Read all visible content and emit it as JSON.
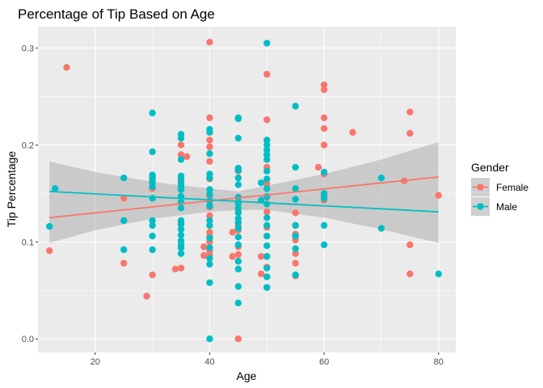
{
  "chart_data": {
    "type": "scatter",
    "title": "Percentage of Tip Based on Age",
    "xlabel": "Age",
    "ylabel": "Tip Percentage",
    "xlim": [
      10,
      83
    ],
    "ylim": [
      -0.014,
      0.322
    ],
    "x_ticks": [
      20,
      40,
      60,
      80
    ],
    "x_tick_labels": [
      "20",
      "40",
      "60",
      "80"
    ],
    "y_ticks": [
      0.0,
      0.1,
      0.2,
      0.3
    ],
    "y_tick_labels": [
      "0.0",
      "0.1",
      "0.2",
      "0.3"
    ],
    "grid": true,
    "legend": {
      "title": "Gender",
      "position": "right"
    },
    "series": [
      {
        "name": "Female",
        "color": "#F8766D",
        "x": [
          12,
          15,
          25,
          25,
          29,
          30,
          30,
          30,
          34,
          35,
          35,
          35,
          35,
          35,
          35,
          36,
          39,
          39,
          40,
          40,
          40,
          40,
          40,
          40,
          40,
          40,
          40,
          40,
          40,
          40,
          40,
          40,
          44,
          44,
          45,
          45,
          45,
          45,
          45,
          45,
          45,
          45,
          49,
          49,
          50,
          50,
          50,
          50,
          50,
          50,
          50,
          50,
          50,
          50,
          50,
          55,
          55,
          55,
          55,
          55,
          55,
          55,
          59,
          60,
          60,
          60,
          60,
          60,
          60,
          60,
          60,
          65,
          74,
          75,
          75,
          75,
          75,
          80
        ],
        "y": [
          0.091,
          0.28,
          0.145,
          0.078,
          0.044,
          0.163,
          0.155,
          0.066,
          0.072,
          0.2,
          0.19,
          0.163,
          0.147,
          0.12,
          0.073,
          0.188,
          0.095,
          0.086,
          0.306,
          0.228,
          0.205,
          0.198,
          0.183,
          0.165,
          0.147,
          0.136,
          0.127,
          0.11,
          0.106,
          0.1,
          0.091,
          0.087,
          0.11,
          0.085,
          0.173,
          0.142,
          0.132,
          0.117,
          0.112,
          0.095,
          0.087,
          0.0,
          0.085,
          0.067,
          0.273,
          0.226,
          0.205,
          0.177,
          0.16,
          0.146,
          0.131,
          0.115,
          0.106,
          0.085,
          0.074,
          0.13,
          0.117,
          0.108,
          0.102,
          0.088,
          0.078,
          0.065,
          0.177,
          0.262,
          0.257,
          0.228,
          0.217,
          0.2,
          0.17,
          0.147,
          0.143,
          0.213,
          0.163,
          0.234,
          0.212,
          0.097,
          0.067,
          0.148
        ]
      },
      {
        "name": "Male",
        "color": "#00BFC4",
        "x": [
          12,
          13,
          25,
          25,
          25,
          30,
          30,
          30,
          30,
          30,
          30,
          30,
          30,
          30,
          30,
          30,
          30,
          35,
          35,
          35,
          35,
          35,
          35,
          35,
          35,
          35,
          35,
          35,
          35,
          35,
          35,
          35,
          35,
          35,
          35,
          35,
          40,
          40,
          40,
          40,
          40,
          40,
          40,
          40,
          40,
          40,
          40,
          40,
          40,
          40,
          40,
          40,
          40,
          45,
          45,
          45,
          45,
          45,
          45,
          45,
          45,
          45,
          45,
          45,
          45,
          45,
          45,
          45,
          45,
          45,
          45,
          45,
          45,
          49,
          49,
          50,
          50,
          50,
          50,
          50,
          50,
          50,
          50,
          50,
          50,
          50,
          50,
          50,
          50,
          50,
          50,
          50,
          50,
          50,
          50,
          55,
          55,
          55,
          55,
          55,
          55,
          55,
          55,
          60,
          60,
          60,
          60,
          60,
          70,
          70,
          80
        ],
        "y": [
          0.116,
          0.155,
          0.166,
          0.122,
          0.092,
          0.233,
          0.193,
          0.169,
          0.167,
          0.165,
          0.161,
          0.157,
          0.145,
          0.122,
          0.117,
          0.106,
          0.092,
          0.211,
          0.207,
          0.185,
          0.168,
          0.165,
          0.16,
          0.157,
          0.154,
          0.147,
          0.141,
          0.135,
          0.122,
          0.118,
          0.113,
          0.107,
          0.101,
          0.097,
          0.094,
          0.088,
          0.216,
          0.213,
          0.191,
          0.17,
          0.166,
          0.154,
          0.149,
          0.142,
          0.137,
          0.122,
          0.117,
          0.104,
          0.094,
          0.083,
          0.077,
          0.058,
          0.0,
          0.228,
          0.227,
          0.207,
          0.176,
          0.174,
          0.166,
          0.159,
          0.146,
          0.14,
          0.135,
          0.13,
          0.124,
          0.12,
          0.114,
          0.105,
          0.097,
          0.08,
          0.072,
          0.054,
          0.037,
          0.161,
          0.143,
          0.305,
          0.205,
          0.2,
          0.195,
          0.19,
          0.185,
          0.173,
          0.165,
          0.155,
          0.147,
          0.139,
          0.125,
          0.117,
          0.106,
          0.096,
          0.085,
          0.073,
          0.064,
          0.053,
          0.053,
          0.24,
          0.177,
          0.155,
          0.144,
          0.117,
          0.106,
          0.093,
          0.066,
          0.172,
          0.15,
          0.145,
          0.117,
          0.097,
          0.166,
          0.114,
          0.067
        ]
      }
    ],
    "trend_lines": [
      {
        "name": "Female",
        "color": "#F8766D",
        "x": [
          12,
          80
        ],
        "y": [
          0.125,
          0.167
        ]
      },
      {
        "name": "Male",
        "color": "#00BFC4",
        "x": [
          12,
          80
        ],
        "y": [
          0.152,
          0.131
        ]
      }
    ],
    "confidence_band": {
      "color": "#999999",
      "x": [
        12,
        20,
        30,
        40,
        45,
        50,
        60,
        70,
        80
      ],
      "upper": [
        0.183,
        0.172,
        0.162,
        0.155,
        0.152,
        0.158,
        0.17,
        0.185,
        0.203
      ],
      "lower": [
        0.099,
        0.112,
        0.124,
        0.131,
        0.133,
        0.133,
        0.125,
        0.113,
        0.099
      ]
    }
  }
}
